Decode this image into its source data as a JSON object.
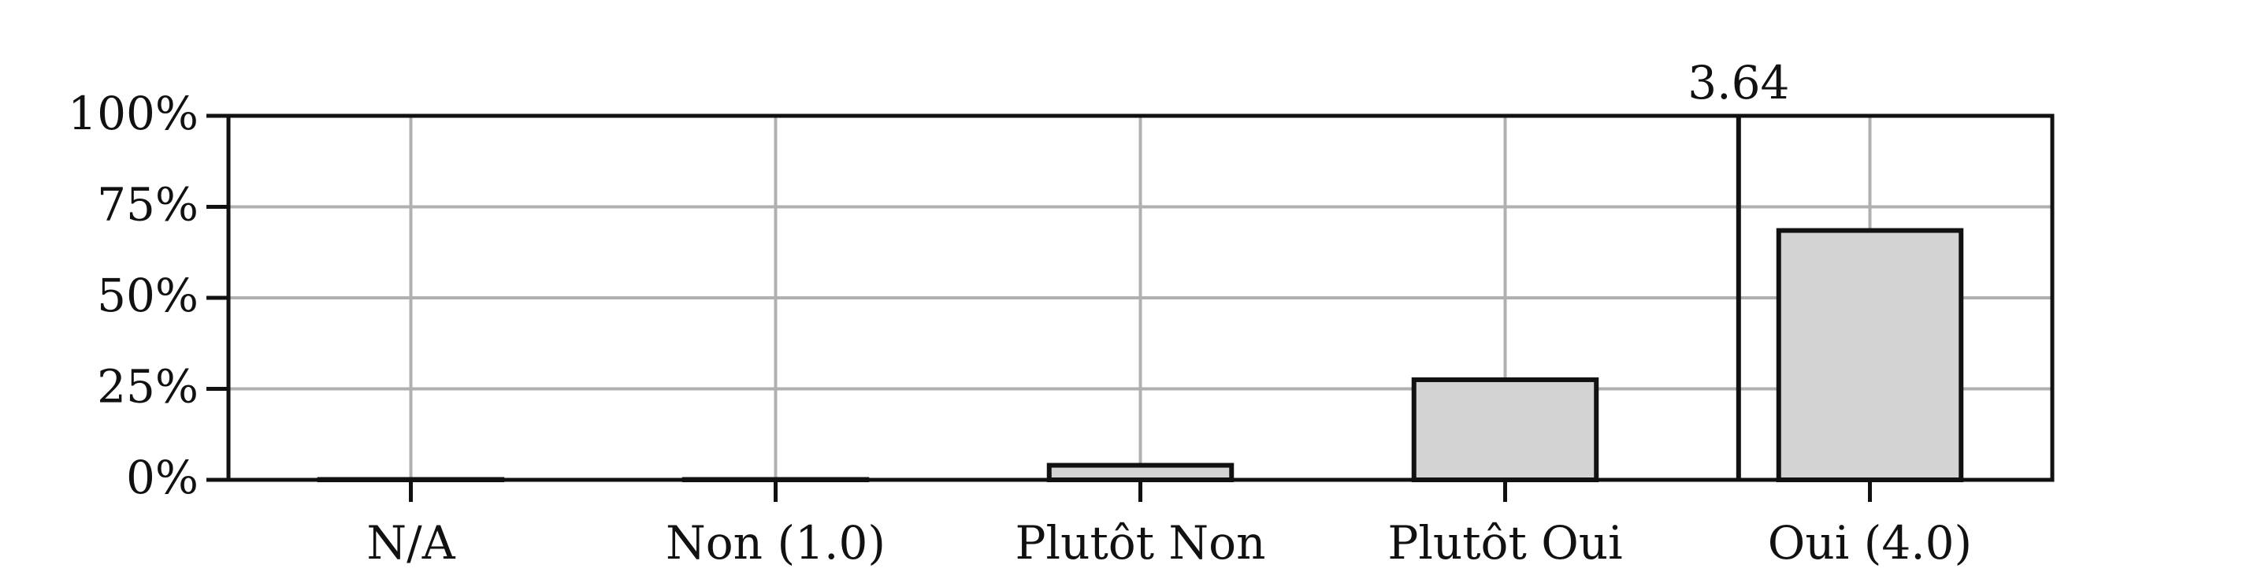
{
  "chart_data": {
    "type": "bar",
    "categories": [
      "N/A",
      "Non (1.0)",
      "Plutôt Non",
      "Plutôt Oui",
      "Oui (4.0)"
    ],
    "values": [
      0,
      0,
      4,
      27.5,
      68.5
    ],
    "ylim": [
      0,
      100
    ],
    "yticks": [
      0,
      25,
      50,
      75,
      100
    ],
    "ytick_labels": [
      "0%",
      "25%",
      "50%",
      "75%",
      "100%"
    ],
    "grid": true,
    "mean_marker": {
      "value": 3.64,
      "label": "3.64"
    },
    "colors": {
      "bar_fill": "#d3d3d3",
      "bar_edge": "#111111",
      "grid": "#b0b0b0",
      "axes": "#111111"
    }
  }
}
